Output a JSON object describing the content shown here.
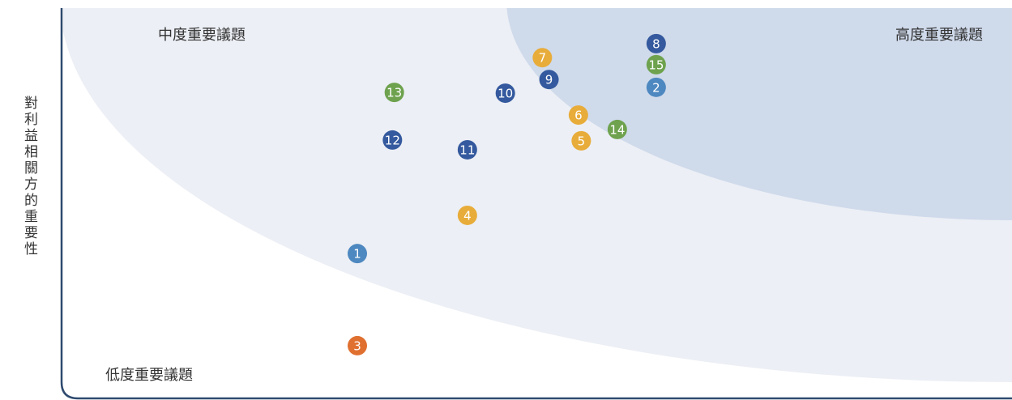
{
  "chart_data": {
    "type": "scatter",
    "y_label": "對利益相關方的重要性",
    "regions": {
      "medium": "中度重要議題",
      "high": "高度重要議題",
      "low": "低度重要議題"
    },
    "labels": [
      "1",
      "2",
      "3",
      "4",
      "5",
      "6",
      "7",
      "8",
      "9",
      "10",
      "11",
      "12",
      "13",
      "14",
      "15"
    ],
    "x": [
      31.0,
      62.5,
      31.0,
      42.6,
      54.6,
      54.3,
      50.5,
      62.5,
      51.2,
      46.6,
      42.6,
      34.7,
      34.9,
      58.4,
      62.5
    ],
    "y": [
      37.1,
      79.7,
      13.5,
      46.9,
      66.0,
      72.6,
      87.3,
      90.9,
      81.7,
      78.2,
      63.7,
      66.2,
      78.4,
      68.9,
      85.5
    ],
    "colors": [
      "#4e88c0",
      "#4e88c0",
      "#e07030",
      "#e8ac3a",
      "#e8ac3a",
      "#e8ac3a",
      "#e8ac3a",
      "#34599e",
      "#34599e",
      "#34599e",
      "#34599e",
      "#34599e",
      "#6ea24e",
      "#6ea24e",
      "#6ea24e"
    ],
    "xlim": [
      0,
      100
    ],
    "ylim": [
      0,
      100
    ]
  }
}
